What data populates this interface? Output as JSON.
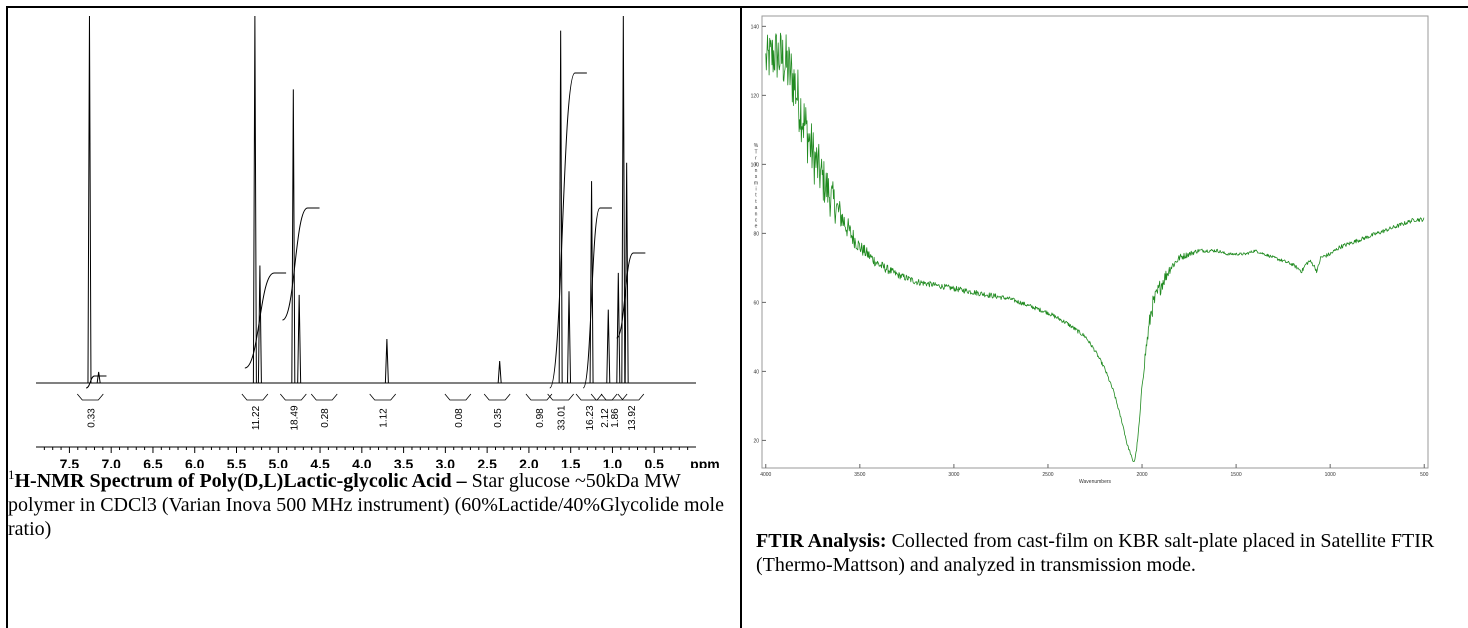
{
  "chart_data": [
    {
      "type": "line",
      "xlabel": "ppm",
      "xlim": [
        7.9,
        0.0
      ],
      "x_ticks": [
        "7.5",
        "7.0",
        "6.5",
        "6.0",
        "5.5",
        "5.0",
        "4.5",
        "4.0",
        "3.5",
        "3.0",
        "2.5",
        "2.0",
        "1.5",
        "1.0",
        "0.5"
      ],
      "x_unit_label": "ppm",
      "peaks": [
        {
          "ppm": 7.26,
          "height": 1.0
        },
        {
          "ppm": 7.15,
          "height": 0.03
        },
        {
          "ppm": 5.28,
          "height": 1.0
        },
        {
          "ppm": 5.22,
          "height": 0.32
        },
        {
          "ppm": 4.82,
          "height": 0.8
        },
        {
          "ppm": 4.75,
          "height": 0.24
        },
        {
          "ppm": 3.7,
          "height": 0.12
        },
        {
          "ppm": 2.35,
          "height": 0.06
        },
        {
          "ppm": 1.62,
          "height": 0.96
        },
        {
          "ppm": 1.52,
          "height": 0.25
        },
        {
          "ppm": 1.25,
          "height": 0.55
        },
        {
          "ppm": 1.05,
          "height": 0.2
        },
        {
          "ppm": 0.93,
          "height": 0.3
        },
        {
          "ppm": 0.87,
          "height": 1.0
        },
        {
          "ppm": 0.83,
          "height": 0.6
        }
      ],
      "integrals": [
        {
          "ppm": 7.25,
          "label": "0.33"
        },
        {
          "ppm": 5.28,
          "label": "11.22"
        },
        {
          "ppm": 4.82,
          "label": "18.49"
        },
        {
          "ppm": 4.45,
          "label": "0.28"
        },
        {
          "ppm": 3.75,
          "label": "1.12"
        },
        {
          "ppm": 2.85,
          "label": "0.08"
        },
        {
          "ppm": 2.38,
          "label": "0.35"
        },
        {
          "ppm": 1.88,
          "label": "0.98"
        },
        {
          "ppm": 1.62,
          "label": "33.01"
        },
        {
          "ppm": 1.28,
          "label": "16.23"
        },
        {
          "ppm": 1.1,
          "label": "2.12"
        },
        {
          "ppm": 0.98,
          "label": "1.86"
        },
        {
          "ppm": 0.78,
          "label": "13.92"
        }
      ],
      "colors": {
        "trace": "#000000"
      }
    },
    {
      "type": "line",
      "xlabel": "Wavenumbers",
      "ylabel": "% Transmittance",
      "xlim": [
        4000,
        500
      ],
      "ylim": [
        12,
        143
      ],
      "x_ticks": [
        "4000",
        "3500",
        "3000",
        "2500",
        "2000",
        "1500",
        "1000",
        "500"
      ],
      "y_ticks": [
        "20",
        "40",
        "60",
        "80",
        "100",
        "120",
        "140"
      ],
      "series": [
        {
          "x": [
            4050,
            4000,
            3950,
            3900,
            3850,
            3800,
            3750,
            3700,
            3650,
            3600,
            3550,
            3500,
            3400,
            3300,
            3200,
            3100,
            3000,
            2900,
            2800,
            2700,
            2600,
            2500,
            2400,
            2300,
            2250,
            2200,
            2150,
            2100,
            2080,
            2060,
            2050,
            2040,
            2030,
            2020,
            2010,
            2000,
            1980,
            1950,
            1900,
            1850,
            1800,
            1750,
            1700,
            1650,
            1600,
            1550,
            1500,
            1450,
            1400,
            1350,
            1300,
            1250,
            1200,
            1150,
            1130,
            1110,
            1090,
            1070,
            1050,
            1000,
            950,
            900,
            850,
            800,
            750,
            700,
            650,
            600,
            550,
            500
          ],
          "y": [
            118,
            130,
            132,
            130,
            124,
            113,
            103,
            96,
            90,
            85,
            80,
            76,
            71,
            68,
            66,
            65,
            64,
            63,
            62,
            61,
            59,
            57,
            54,
            50,
            46,
            41,
            34,
            24,
            19,
            16,
            14,
            14,
            17,
            22,
            28,
            36,
            46,
            58,
            65,
            70,
            73,
            74,
            75,
            75,
            75,
            74,
            74,
            74,
            75,
            74,
            73,
            72,
            71,
            69,
            71,
            72,
            71,
            69,
            73,
            74,
            76,
            77,
            78,
            79,
            80,
            81,
            82,
            83,
            84,
            84
          ],
          "noise": [
            5,
            7,
            8,
            9,
            9,
            9,
            8,
            7,
            6,
            4,
            3,
            2,
            1.5,
            1,
            1,
            0.8,
            0.8,
            0.8,
            0.8,
            0.6,
            0.6,
            0.6,
            0.6,
            0.6,
            0.5,
            0.5,
            0.5,
            0.4,
            0.4,
            0.4,
            0.4,
            0.4,
            0.4,
            0.5,
            0.6,
            1,
            2,
            3,
            2.5,
            1.5,
            1,
            0.8,
            0.6,
            0.5,
            0.5,
            0.4,
            0.4,
            0.4,
            0.4,
            0.4,
            0.4,
            0.5,
            0.5,
            0.6,
            0.6,
            0.6,
            0.6,
            0.6,
            0.6,
            0.6,
            0.6,
            0.6,
            0.6,
            0.6,
            0.6,
            0.6,
            0.6,
            0.6,
            0.6,
            0.6
          ]
        }
      ],
      "colors": {
        "trace": "#1f8a1f",
        "trace_light": "#6fbf6f",
        "frame": "#9a9a9a"
      }
    }
  ],
  "nmr_caption": {
    "sup": "1",
    "bold": "H-NMR Spectrum of Poly(D,L)Lactic-glycolic Acid",
    "dash": " – ",
    "text": "Star glucose ~50kDa MW polymer in CDCl3 (Varian Inova 500 MHz instrument) (60%Lactide/40%Glycolide mole ratio)"
  },
  "ftir_caption": {
    "bold": "FTIR Analysis:",
    "text": " Collected from cast-film on KBR salt-plate placed in Satellite FTIR (Thermo-Mattson) and analyzed in transmission mode."
  }
}
